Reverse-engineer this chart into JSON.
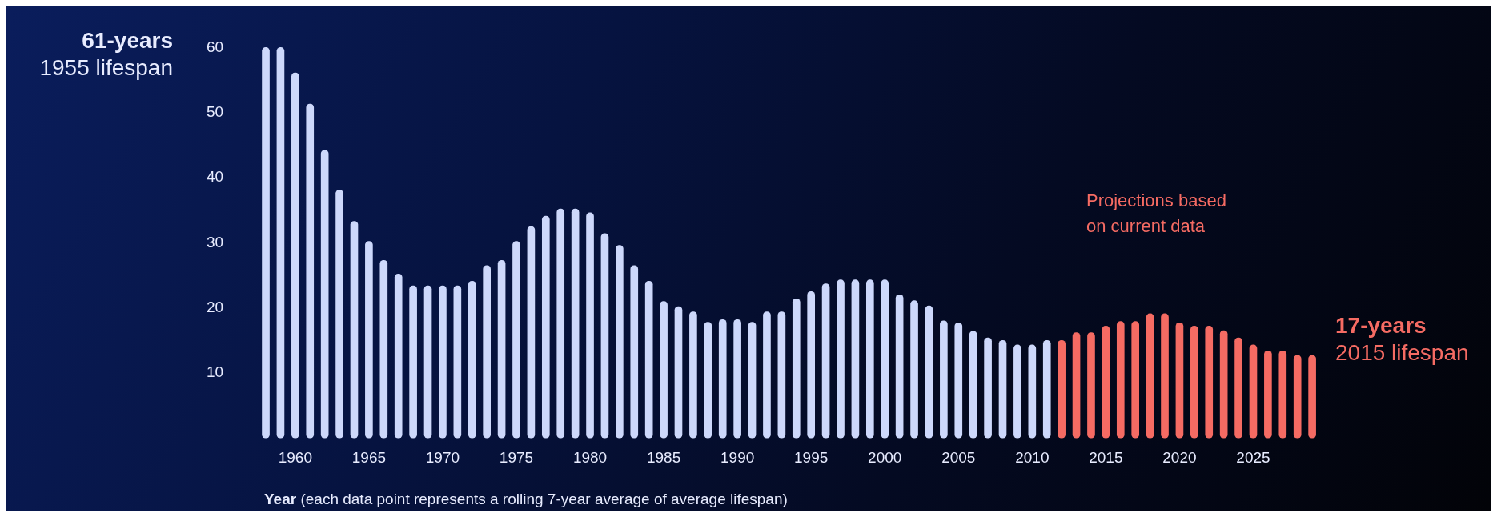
{
  "chart_data": {
    "type": "bar",
    "xlabel": "Year (each data point represents a rolling 7-year average of average lifespan)",
    "x": [
      1958,
      1959,
      1960,
      1961,
      1962,
      1963,
      1964,
      1965,
      1966,
      1967,
      1968,
      1969,
      1970,
      1971,
      1972,
      1973,
      1974,
      1975,
      1976,
      1977,
      1978,
      1979,
      1980,
      1981,
      1982,
      1983,
      1984,
      1985,
      1986,
      1987,
      1988,
      1989,
      1990,
      1991,
      1992,
      1993,
      1994,
      1995,
      1996,
      1997,
      1998,
      1999,
      2000,
      2001,
      2002,
      2003,
      2004,
      2005,
      2006,
      2007,
      2008,
      2009,
      2010,
      2011,
      2012,
      2013,
      2014,
      2015,
      2016,
      2017,
      2018,
      2019,
      2020,
      2021,
      2022,
      2023,
      2024,
      2025,
      2026,
      2027,
      2028,
      2029
    ],
    "values": [
      60,
      60,
      56.1,
      51.3,
      44.2,
      38.1,
      33.3,
      30.2,
      27.3,
      25.2,
      23.4,
      23.4,
      23.4,
      23.4,
      24.1,
      26.5,
      27.3,
      30.2,
      32.5,
      34.1,
      35.2,
      35.2,
      34.6,
      31.4,
      29.6,
      26.5,
      24.1,
      21.0,
      20.2,
      19.4,
      17.8,
      18.2,
      18.2,
      17.8,
      19.4,
      19.4,
      21.4,
      22.5,
      23.7,
      24.3,
      24.3,
      24.3,
      24.3,
      22.0,
      21.1,
      20.3,
      18.0,
      17.7,
      16.4,
      15.4,
      15.0,
      14.3,
      14.3,
      15.0,
      15.0,
      16.2,
      16.2,
      17.2,
      17.9,
      17.9,
      19.1,
      19.1,
      17.7,
      17.2,
      17.2,
      16.5,
      15.4,
      14.3,
      13.4,
      13.4,
      12.7,
      12.7
    ],
    "colors": [
      "#cdd8fb",
      "#cdd8fb",
      "#cdd8fb",
      "#cdd8fb",
      "#cdd8fb",
      "#cdd8fb",
      "#cdd8fb",
      "#cdd8fb",
      "#cdd8fb",
      "#cdd8fb",
      "#cdd8fb",
      "#cdd8fb",
      "#cdd8fb",
      "#cdd8fb",
      "#cdd8fb",
      "#cdd8fb",
      "#cdd8fb",
      "#cdd8fb",
      "#cdd8fb",
      "#cdd8fb",
      "#cdd8fb",
      "#cdd8fb",
      "#cdd8fb",
      "#cdd8fb",
      "#cdd8fb",
      "#cdd8fb",
      "#cdd8fb",
      "#cdd8fb",
      "#cdd8fb",
      "#cdd8fb",
      "#cdd8fb",
      "#cdd8fb",
      "#cdd8fb",
      "#cdd8fb",
      "#cdd8fb",
      "#cdd8fb",
      "#cdd8fb",
      "#cdd8fb",
      "#cdd8fb",
      "#cdd8fb",
      "#cdd8fb",
      "#cdd8fb",
      "#cdd8fb",
      "#cdd8fb",
      "#cdd8fb",
      "#cdd8fb",
      "#cdd8fb",
      "#cdd8fb",
      "#cdd8fb",
      "#cdd8fb",
      "#cdd8fb",
      "#cdd8fb",
      "#cdd8fb",
      "#cdd8fb",
      "#f56b63",
      "#f56b63",
      "#f56b63",
      "#f56b63",
      "#f56b63",
      "#f56b63",
      "#f56b63",
      "#f56b63",
      "#f56b63",
      "#f56b63",
      "#f56b63",
      "#f56b63",
      "#f56b63",
      "#f56b63",
      "#f56b63",
      "#f56b63",
      "#f56b63",
      "#f56b63"
    ],
    "xlim": [
      1957.3,
      2029.7
    ],
    "xticks": [
      1960,
      1965,
      1970,
      1975,
      1980,
      1985,
      1990,
      1995,
      2000,
      2005,
      2010,
      2015,
      2020,
      2025
    ],
    "ylim": [
      0,
      60
    ],
    "yticks": [
      10,
      20,
      30,
      40,
      50,
      60
    ],
    "grid": false,
    "legend": false,
    "annotations": [
      "61-years",
      "1955 lifespan",
      "17-years",
      "2015 lifespan",
      "Projections based on current data"
    ]
  }
}
